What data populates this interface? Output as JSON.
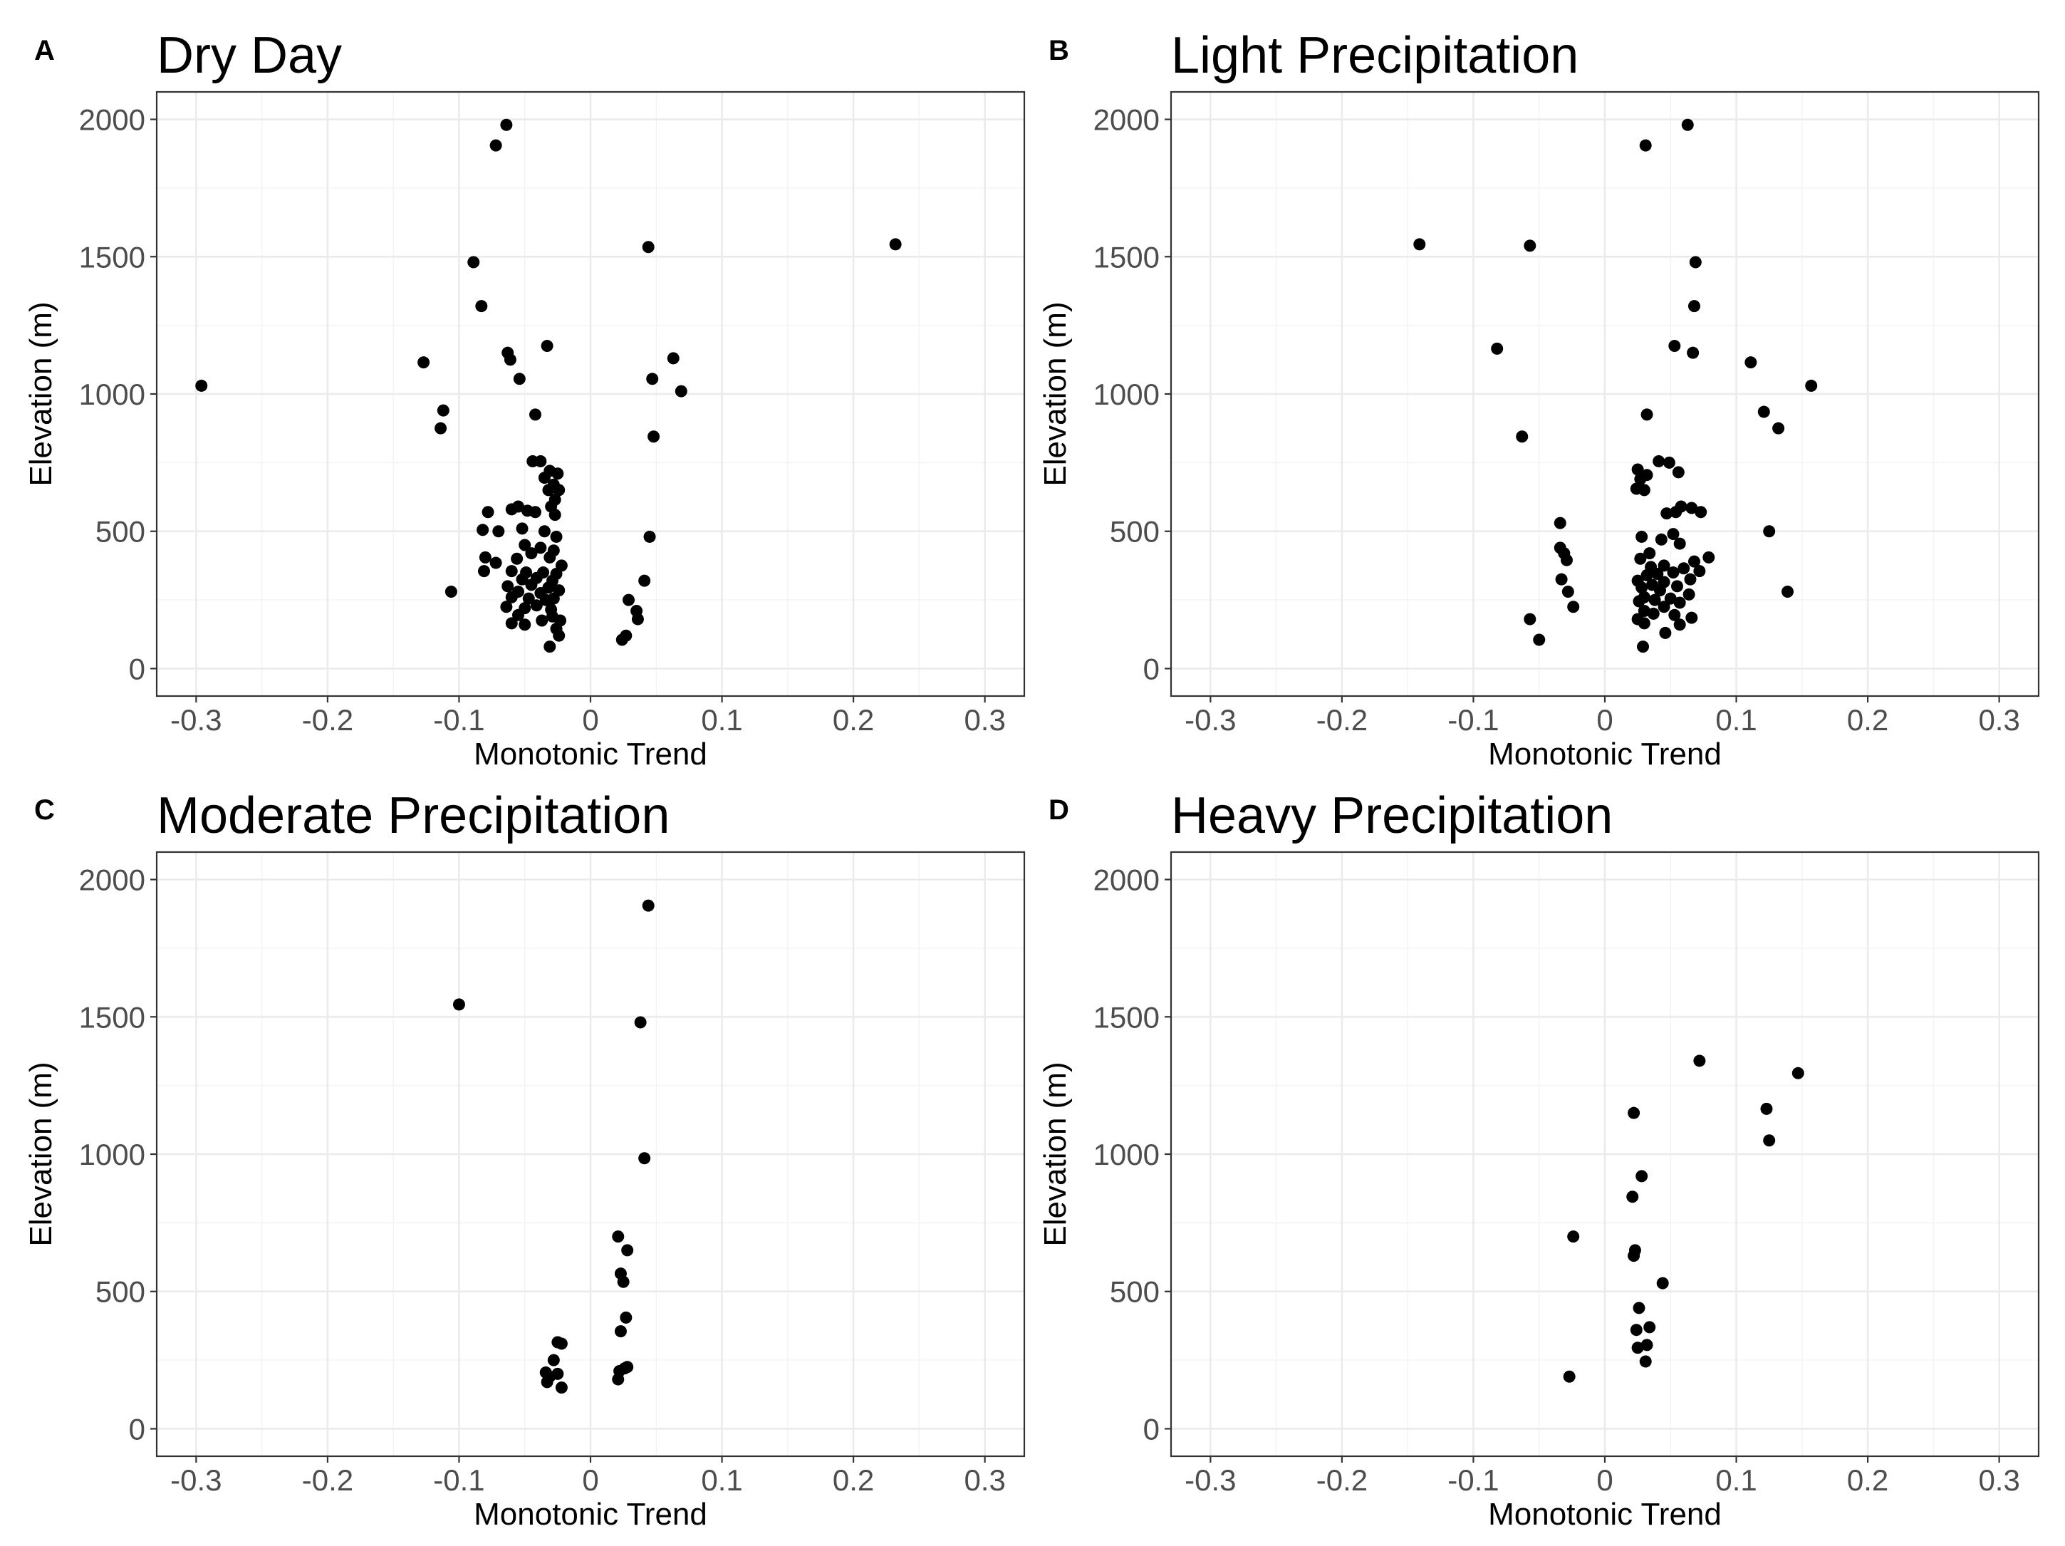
{
  "figure": {
    "x_axis_label": "Monotonic Trend",
    "y_axis_label": "Elevation (m)"
  },
  "chart_data": [
    {
      "panel": "A",
      "title": "Dry Day",
      "type": "scatter",
      "xlabel": "Monotonic Trend",
      "ylabel": "Elevation (m)",
      "xlim": [
        -0.33,
        0.33
      ],
      "ylim": [
        -100,
        2100
      ],
      "xticks": [
        -0.3,
        -0.2,
        -0.1,
        0,
        0.1,
        0.2,
        0.3
      ],
      "xtick_labels": [
        "-0.3",
        "-0.2",
        "-0.1",
        "0",
        "0.1",
        "0.2",
        "0.3"
      ],
      "yticks": [
        0,
        500,
        1000,
        1500,
        2000
      ],
      "ytick_labels": [
        "0",
        "500",
        "1000",
        "1500",
        "2000"
      ],
      "points": [
        [
          -0.296,
          1030
        ],
        [
          0.232,
          1545
        ],
        [
          -0.064,
          1980
        ],
        [
          -0.072,
          1905
        ],
        [
          -0.089,
          1480
        ],
        [
          0.044,
          1535
        ],
        [
          -0.083,
          1320
        ],
        [
          -0.033,
          1175
        ],
        [
          -0.127,
          1115
        ],
        [
          -0.063,
          1150
        ],
        [
          -0.061,
          1125
        ],
        [
          0.063,
          1130
        ],
        [
          0.047,
          1055
        ],
        [
          0.069,
          1010
        ],
        [
          -0.054,
          1055
        ],
        [
          -0.112,
          940
        ],
        [
          -0.114,
          875
        ],
        [
          -0.042,
          925
        ],
        [
          0.048,
          845
        ],
        [
          -0.106,
          280
        ],
        [
          0.045,
          480
        ],
        [
          0.041,
          320
        ],
        [
          0.029,
          250
        ],
        [
          0.035,
          210
        ],
        [
          0.036,
          180
        ],
        [
          0.027,
          120
        ],
        [
          0.024,
          105
        ],
        [
          -0.044,
          755
        ],
        [
          -0.038,
          755
        ],
        [
          -0.031,
          720
        ],
        [
          -0.025,
          710
        ],
        [
          -0.035,
          695
        ],
        [
          -0.028,
          670
        ],
        [
          -0.032,
          650
        ],
        [
          -0.024,
          650
        ],
        [
          -0.027,
          615
        ],
        [
          -0.078,
          570
        ],
        [
          -0.06,
          580
        ],
        [
          -0.055,
          590
        ],
        [
          -0.048,
          575
        ],
        [
          -0.042,
          570
        ],
        [
          -0.03,
          590
        ],
        [
          -0.027,
          560
        ],
        [
          -0.082,
          505
        ],
        [
          -0.07,
          500
        ],
        [
          -0.052,
          510
        ],
        [
          -0.035,
          500
        ],
        [
          -0.026,
          480
        ],
        [
          -0.05,
          450
        ],
        [
          -0.038,
          440
        ],
        [
          -0.045,
          420
        ],
        [
          -0.028,
          430
        ],
        [
          -0.08,
          405
        ],
        [
          -0.072,
          385
        ],
        [
          -0.056,
          400
        ],
        [
          -0.031,
          405
        ],
        [
          -0.022,
          375
        ],
        [
          -0.081,
          355
        ],
        [
          -0.06,
          355
        ],
        [
          -0.049,
          350
        ],
        [
          -0.036,
          350
        ],
        [
          -0.026,
          345
        ],
        [
          -0.052,
          325
        ],
        [
          -0.041,
          330
        ],
        [
          -0.029,
          320
        ],
        [
          -0.063,
          300
        ],
        [
          -0.045,
          305
        ],
        [
          -0.032,
          295
        ],
        [
          -0.055,
          280
        ],
        [
          -0.038,
          275
        ],
        [
          -0.024,
          285
        ],
        [
          -0.06,
          260
        ],
        [
          -0.047,
          255
        ],
        [
          -0.034,
          250
        ],
        [
          -0.028,
          255
        ],
        [
          -0.064,
          225
        ],
        [
          -0.05,
          220
        ],
        [
          -0.041,
          230
        ],
        [
          -0.03,
          215
        ],
        [
          -0.055,
          195
        ],
        [
          -0.029,
          190
        ],
        [
          -0.06,
          165
        ],
        [
          -0.05,
          160
        ],
        [
          -0.037,
          175
        ],
        [
          -0.023,
          175
        ],
        [
          -0.026,
          145
        ],
        [
          -0.024,
          120
        ],
        [
          -0.031,
          80
        ]
      ]
    },
    {
      "panel": "B",
      "title": "Light Precipitation",
      "type": "scatter",
      "xlabel": "Monotonic Trend",
      "ylabel": "Elevation (m)",
      "xlim": [
        -0.33,
        0.33
      ],
      "ylim": [
        -100,
        2100
      ],
      "xticks": [
        -0.3,
        -0.2,
        -0.1,
        0,
        0.1,
        0.2,
        0.3
      ],
      "xtick_labels": [
        "-0.3",
        "-0.2",
        "-0.1",
        "0",
        "0.1",
        "0.2",
        "0.3"
      ],
      "yticks": [
        0,
        500,
        1000,
        1500,
        2000
      ],
      "ytick_labels": [
        "0",
        "500",
        "1000",
        "1500",
        "2000"
      ],
      "points": [
        [
          0.063,
          1980
        ],
        [
          0.031,
          1905
        ],
        [
          -0.141,
          1545
        ],
        [
          -0.057,
          1540
        ],
        [
          0.069,
          1480
        ],
        [
          0.068,
          1320
        ],
        [
          0.053,
          1175
        ],
        [
          0.067,
          1150
        ],
        [
          -0.082,
          1165
        ],
        [
          0.111,
          1115
        ],
        [
          0.157,
          1030
        ],
        [
          0.121,
          935
        ],
        [
          0.132,
          875
        ],
        [
          -0.063,
          845
        ],
        [
          0.032,
          925
        ],
        [
          0.125,
          500
        ],
        [
          0.139,
          280
        ],
        [
          0.041,
          755
        ],
        [
          0.049,
          750
        ],
        [
          0.025,
          725
        ],
        [
          0.032,
          705
        ],
        [
          0.056,
          715
        ],
        [
          0.027,
          690
        ],
        [
          0.024,
          655
        ],
        [
          0.03,
          650
        ],
        [
          0.058,
          590
        ],
        [
          0.066,
          585
        ],
        [
          0.073,
          570
        ],
        [
          0.047,
          565
        ],
        [
          0.054,
          570
        ],
        [
          -0.034,
          530
        ],
        [
          0.052,
          490
        ],
        [
          0.028,
          480
        ],
        [
          0.043,
          470
        ],
        [
          -0.034,
          440
        ],
        [
          0.057,
          455
        ],
        [
          0.034,
          420
        ],
        [
          -0.031,
          420
        ],
        [
          0.079,
          405
        ],
        [
          -0.029,
          395
        ],
        [
          0.027,
          400
        ],
        [
          0.068,
          390
        ],
        [
          0.045,
          375
        ],
        [
          0.035,
          370
        ],
        [
          0.06,
          365
        ],
        [
          0.072,
          355
        ],
        [
          0.052,
          350
        ],
        [
          0.04,
          345
        ],
        [
          0.032,
          340
        ],
        [
          -0.033,
          325
        ],
        [
          0.065,
          325
        ],
        [
          0.025,
          320
        ],
        [
          0.045,
          315
        ],
        [
          0.036,
          305
        ],
        [
          0.055,
          300
        ],
        [
          0.028,
          295
        ],
        [
          -0.028,
          280
        ],
        [
          0.042,
          285
        ],
        [
          0.064,
          270
        ],
        [
          0.03,
          260
        ],
        [
          0.05,
          255
        ],
        [
          0.038,
          250
        ],
        [
          0.026,
          245
        ],
        [
          0.057,
          240
        ],
        [
          -0.024,
          225
        ],
        [
          0.045,
          225
        ],
        [
          0.03,
          210
        ],
        [
          0.037,
          200
        ],
        [
          0.053,
          195
        ],
        [
          0.066,
          185
        ],
        [
          0.025,
          180
        ],
        [
          -0.057,
          180
        ],
        [
          0.03,
          165
        ],
        [
          0.057,
          160
        ],
        [
          0.046,
          130
        ],
        [
          -0.05,
          105
        ],
        [
          0.029,
          80
        ]
      ]
    },
    {
      "panel": "C",
      "title": "Moderate Precipitation",
      "type": "scatter",
      "xlabel": "Monotonic Trend",
      "ylabel": "Elevation (m)",
      "xlim": [
        -0.33,
        0.33
      ],
      "ylim": [
        -100,
        2100
      ],
      "xticks": [
        -0.3,
        -0.2,
        -0.1,
        0,
        0.1,
        0.2,
        0.3
      ],
      "xtick_labels": [
        "-0.3",
        "-0.2",
        "-0.1",
        "0",
        "0.1",
        "0.2",
        "0.3"
      ],
      "yticks": [
        0,
        500,
        1000,
        1500,
        2000
      ],
      "ytick_labels": [
        "0",
        "500",
        "1000",
        "1500",
        "2000"
      ],
      "points": [
        [
          0.044,
          1905
        ],
        [
          -0.1,
          1545
        ],
        [
          0.038,
          1480
        ],
        [
          0.041,
          985
        ],
        [
          0.021,
          700
        ],
        [
          0.028,
          650
        ],
        [
          0.023,
          565
        ],
        [
          0.025,
          535
        ],
        [
          0.027,
          405
        ],
        [
          0.023,
          355
        ],
        [
          -0.025,
          315
        ],
        [
          -0.022,
          310
        ],
        [
          -0.028,
          250
        ],
        [
          0.026,
          220
        ],
        [
          0.028,
          225
        ],
        [
          -0.034,
          205
        ],
        [
          0.022,
          210
        ],
        [
          -0.031,
          190
        ],
        [
          -0.025,
          200
        ],
        [
          0.021,
          180
        ],
        [
          -0.033,
          170
        ],
        [
          -0.022,
          150
        ]
      ]
    },
    {
      "panel": "D",
      "title": "Heavy Precipitation",
      "type": "scatter",
      "xlabel": "Monotonic Trend",
      "ylabel": "Elevation (m)",
      "xlim": [
        -0.33,
        0.33
      ],
      "ylim": [
        -100,
        2100
      ],
      "xticks": [
        -0.3,
        -0.2,
        -0.1,
        0,
        0.1,
        0.2,
        0.3
      ],
      "xtick_labels": [
        "-0.3",
        "-0.2",
        "-0.1",
        "0",
        "0.1",
        "0.2",
        "0.3"
      ],
      "yticks": [
        0,
        500,
        1000,
        1500,
        2000
      ],
      "ytick_labels": [
        "0",
        "500",
        "1000",
        "1500",
        "2000"
      ],
      "points": [
        [
          0.072,
          1340
        ],
        [
          0.147,
          1295
        ],
        [
          0.123,
          1165
        ],
        [
          0.022,
          1150
        ],
        [
          0.125,
          1050
        ],
        [
          0.028,
          920
        ],
        [
          0.021,
          845
        ],
        [
          -0.024,
          700
        ],
        [
          0.023,
          650
        ],
        [
          0.022,
          630
        ],
        [
          0.044,
          530
        ],
        [
          0.026,
          440
        ],
        [
          0.034,
          370
        ],
        [
          0.024,
          360
        ],
        [
          0.032,
          305
        ],
        [
          0.025,
          295
        ],
        [
          0.031,
          245
        ],
        [
          -0.027,
          190
        ]
      ]
    }
  ]
}
